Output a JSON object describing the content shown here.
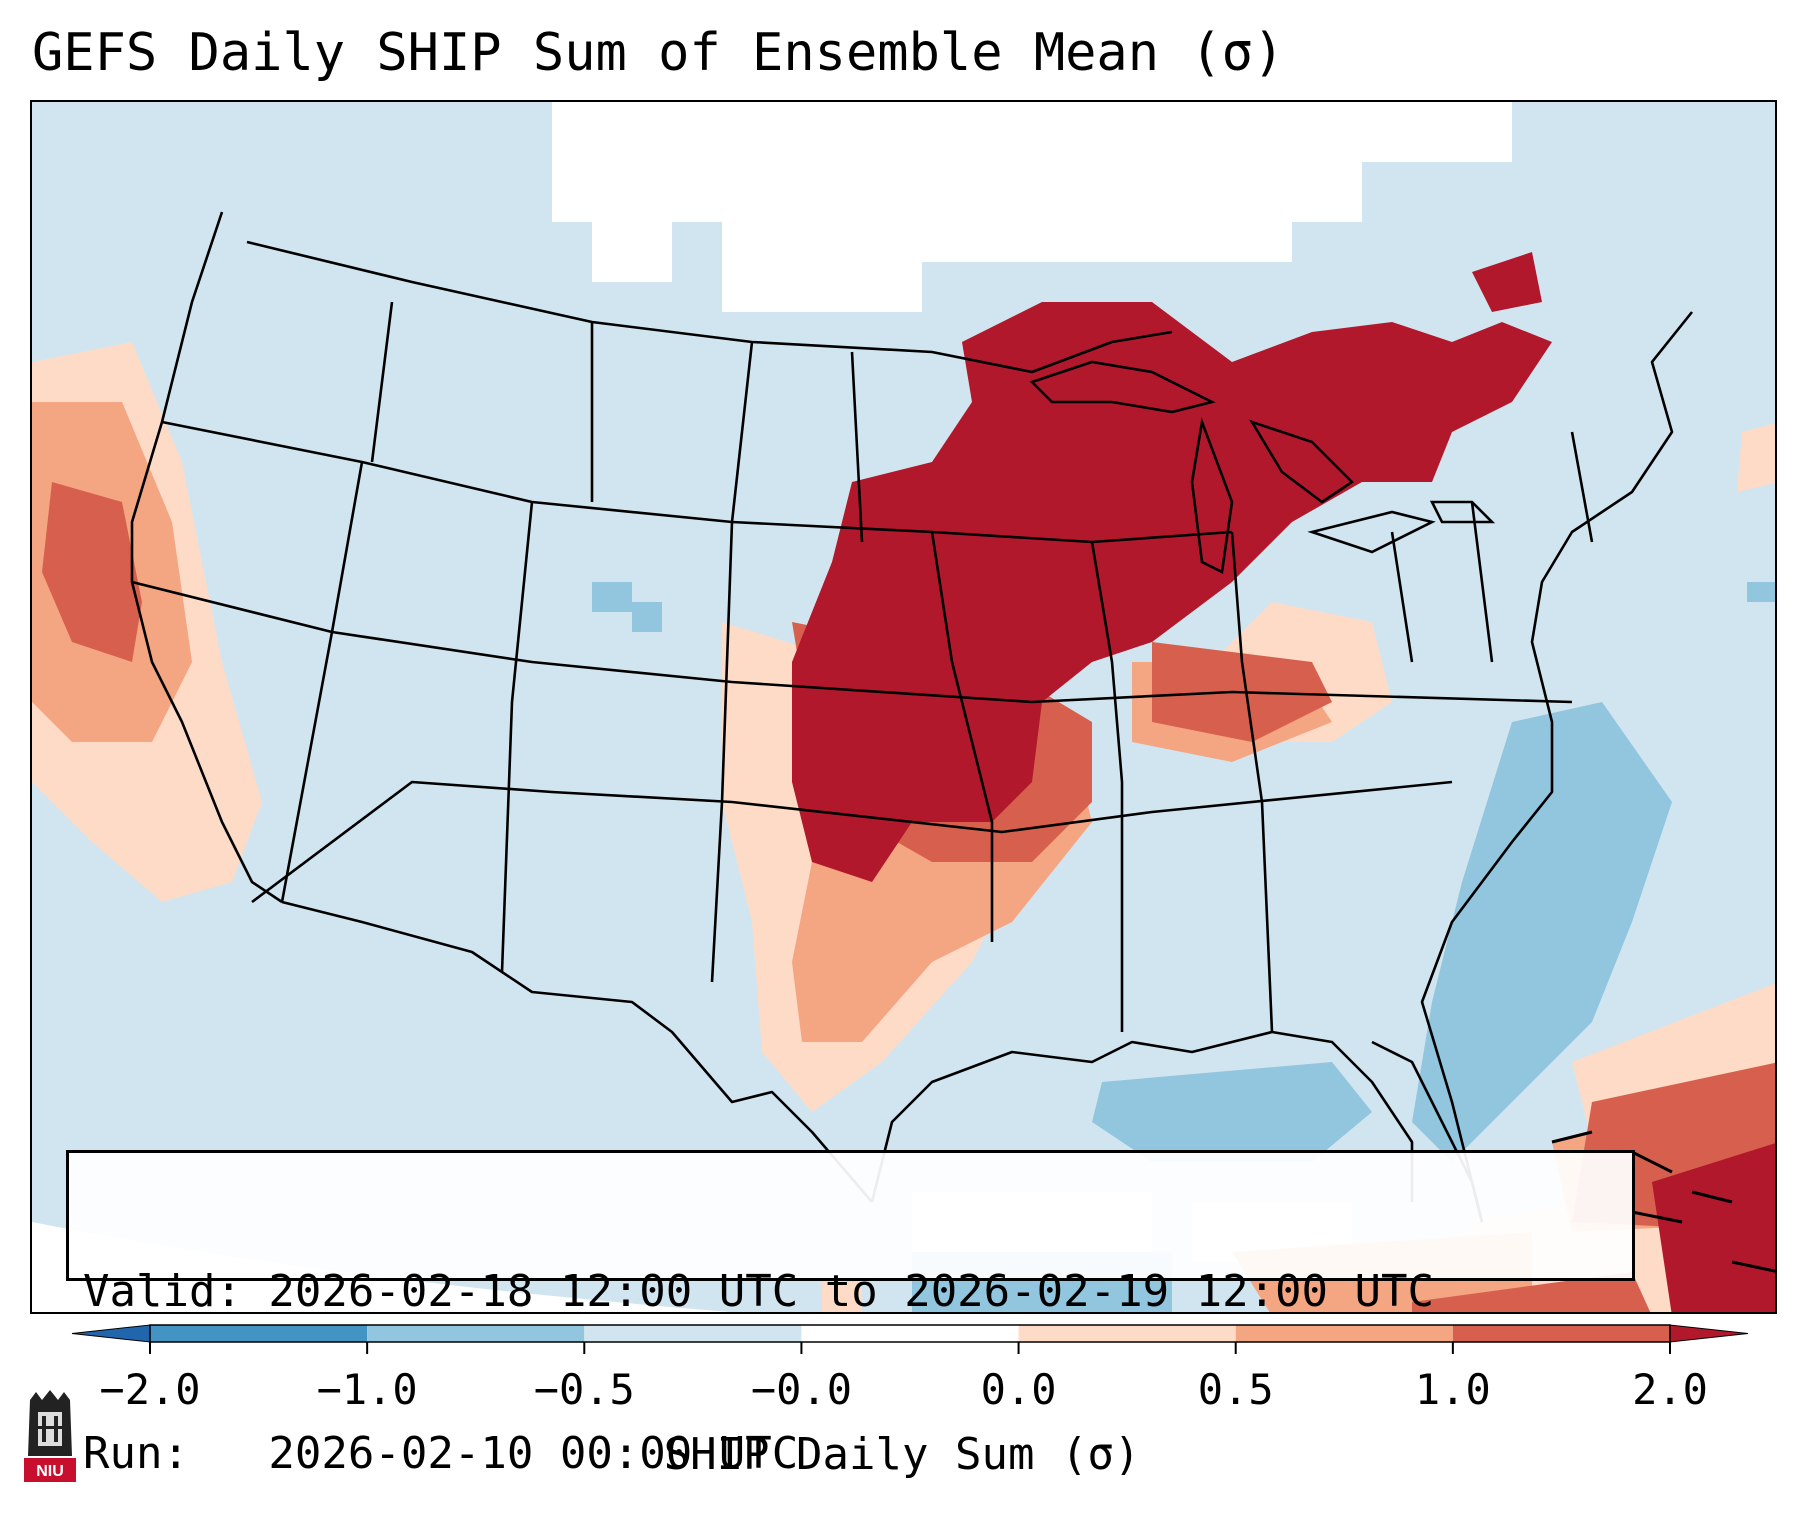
{
  "title": "GEFS Daily SHIP Sum of Ensemble Mean (σ)",
  "info": {
    "valid_line": "Valid: 2026-02-18 12:00 UTC to 2026-02-19 12:00 UTC",
    "run_line": "Run:   2026-02-10 00:00 UTC"
  },
  "colorbar": {
    "label": "SHIP Daily Sum (σ)",
    "ticks": [
      "−2.0",
      "−1.0",
      "−0.5",
      "−0.0",
      "0.0",
      "0.5",
      "1.0",
      "2.0"
    ],
    "bins": [
      {
        "range": "< -2.0",
        "color": "#2166ac"
      },
      {
        "range": "-2.0 to -1.0",
        "color": "#4393c3"
      },
      {
        "range": "-1.0 to -0.5",
        "color": "#92c5de"
      },
      {
        "range": "-0.5 to -0.0",
        "color": "#d1e5f0"
      },
      {
        "range": "-0.0 to 0.0",
        "color": "#ffffff"
      },
      {
        "range": "0.0 to 0.5",
        "color": "#fddbc7"
      },
      {
        "range": "0.5 to 1.0",
        "color": "#f4a582"
      },
      {
        "range": "1.0 to 2.0",
        "color": "#d6604d"
      },
      {
        "range": "> 2.0",
        "color": "#b2182b"
      }
    ]
  },
  "logo": {
    "icon": "niu-logo-icon",
    "text": "NIU"
  }
}
